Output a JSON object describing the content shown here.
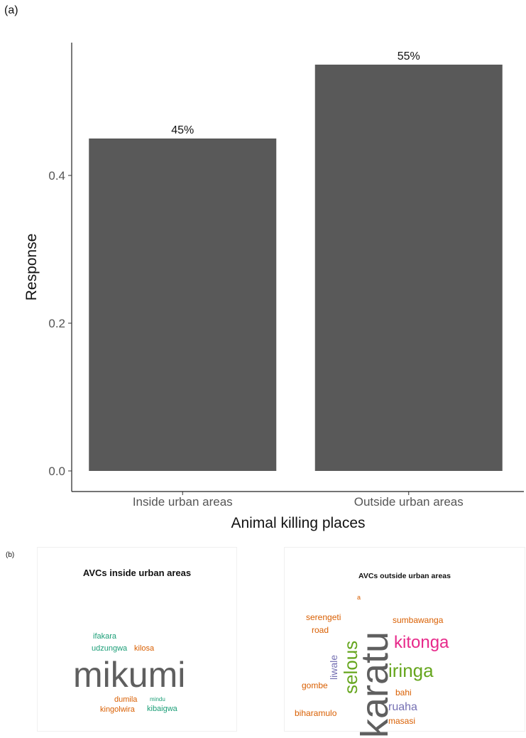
{
  "panel_a_label": "(a)",
  "panel_b_label": "(b)",
  "chart_data": {
    "type": "bar",
    "categories": [
      "Inside urban areas",
      "Outside urban areas"
    ],
    "values": [
      0.45,
      0.55
    ],
    "data_labels": [
      "45%",
      "55%"
    ],
    "title": "",
    "xlabel": "Animal killing places",
    "ylabel": "Response",
    "ylim": [
      0,
      0.58
    ],
    "yticks": [
      0.0,
      0.2,
      0.4
    ],
    "ytick_labels": [
      "0.0",
      "0.2",
      "0.4"
    ],
    "bar_color": "#595959",
    "grid": false,
    "legend": "none"
  },
  "wordclouds": {
    "inside": {
      "title": "AVCs inside urban areas",
      "words": [
        {
          "text": "mikumi",
          "color": "#5f5f5f"
        },
        {
          "text": "ifakara",
          "color": "#1b9e77"
        },
        {
          "text": "udzungwa",
          "color": "#1b9e77"
        },
        {
          "text": "kilosa",
          "color": "#d95f02"
        },
        {
          "text": "dumila",
          "color": "#d95f02"
        },
        {
          "text": "mindu",
          "color": "#1b9e77"
        },
        {
          "text": "kingolwira",
          "color": "#d95f02"
        },
        {
          "text": "kibaigwa",
          "color": "#1b9e77"
        }
      ]
    },
    "outside": {
      "title": "AVCs outside urban areas",
      "words": [
        {
          "text": "karatu",
          "color": "#5f5f5f"
        },
        {
          "text": "selous",
          "color": "#66a61e"
        },
        {
          "text": "iringa",
          "color": "#66a61e"
        },
        {
          "text": "kitonga",
          "color": "#e7298a"
        },
        {
          "text": "liwale",
          "color": "#7570b3"
        },
        {
          "text": "serengeti",
          "color": "#d95f02"
        },
        {
          "text": "road",
          "color": "#d95f02"
        },
        {
          "text": "sumbawanga",
          "color": "#d95f02"
        },
        {
          "text": "gombe",
          "color": "#d95f02"
        },
        {
          "text": "bahi",
          "color": "#d95f02"
        },
        {
          "text": "ruaha",
          "color": "#7570b3"
        },
        {
          "text": "biharamulo",
          "color": "#d95f02"
        },
        {
          "text": "masasi",
          "color": "#d95f02"
        },
        {
          "text": "a",
          "color": "#d95f02"
        }
      ]
    }
  }
}
